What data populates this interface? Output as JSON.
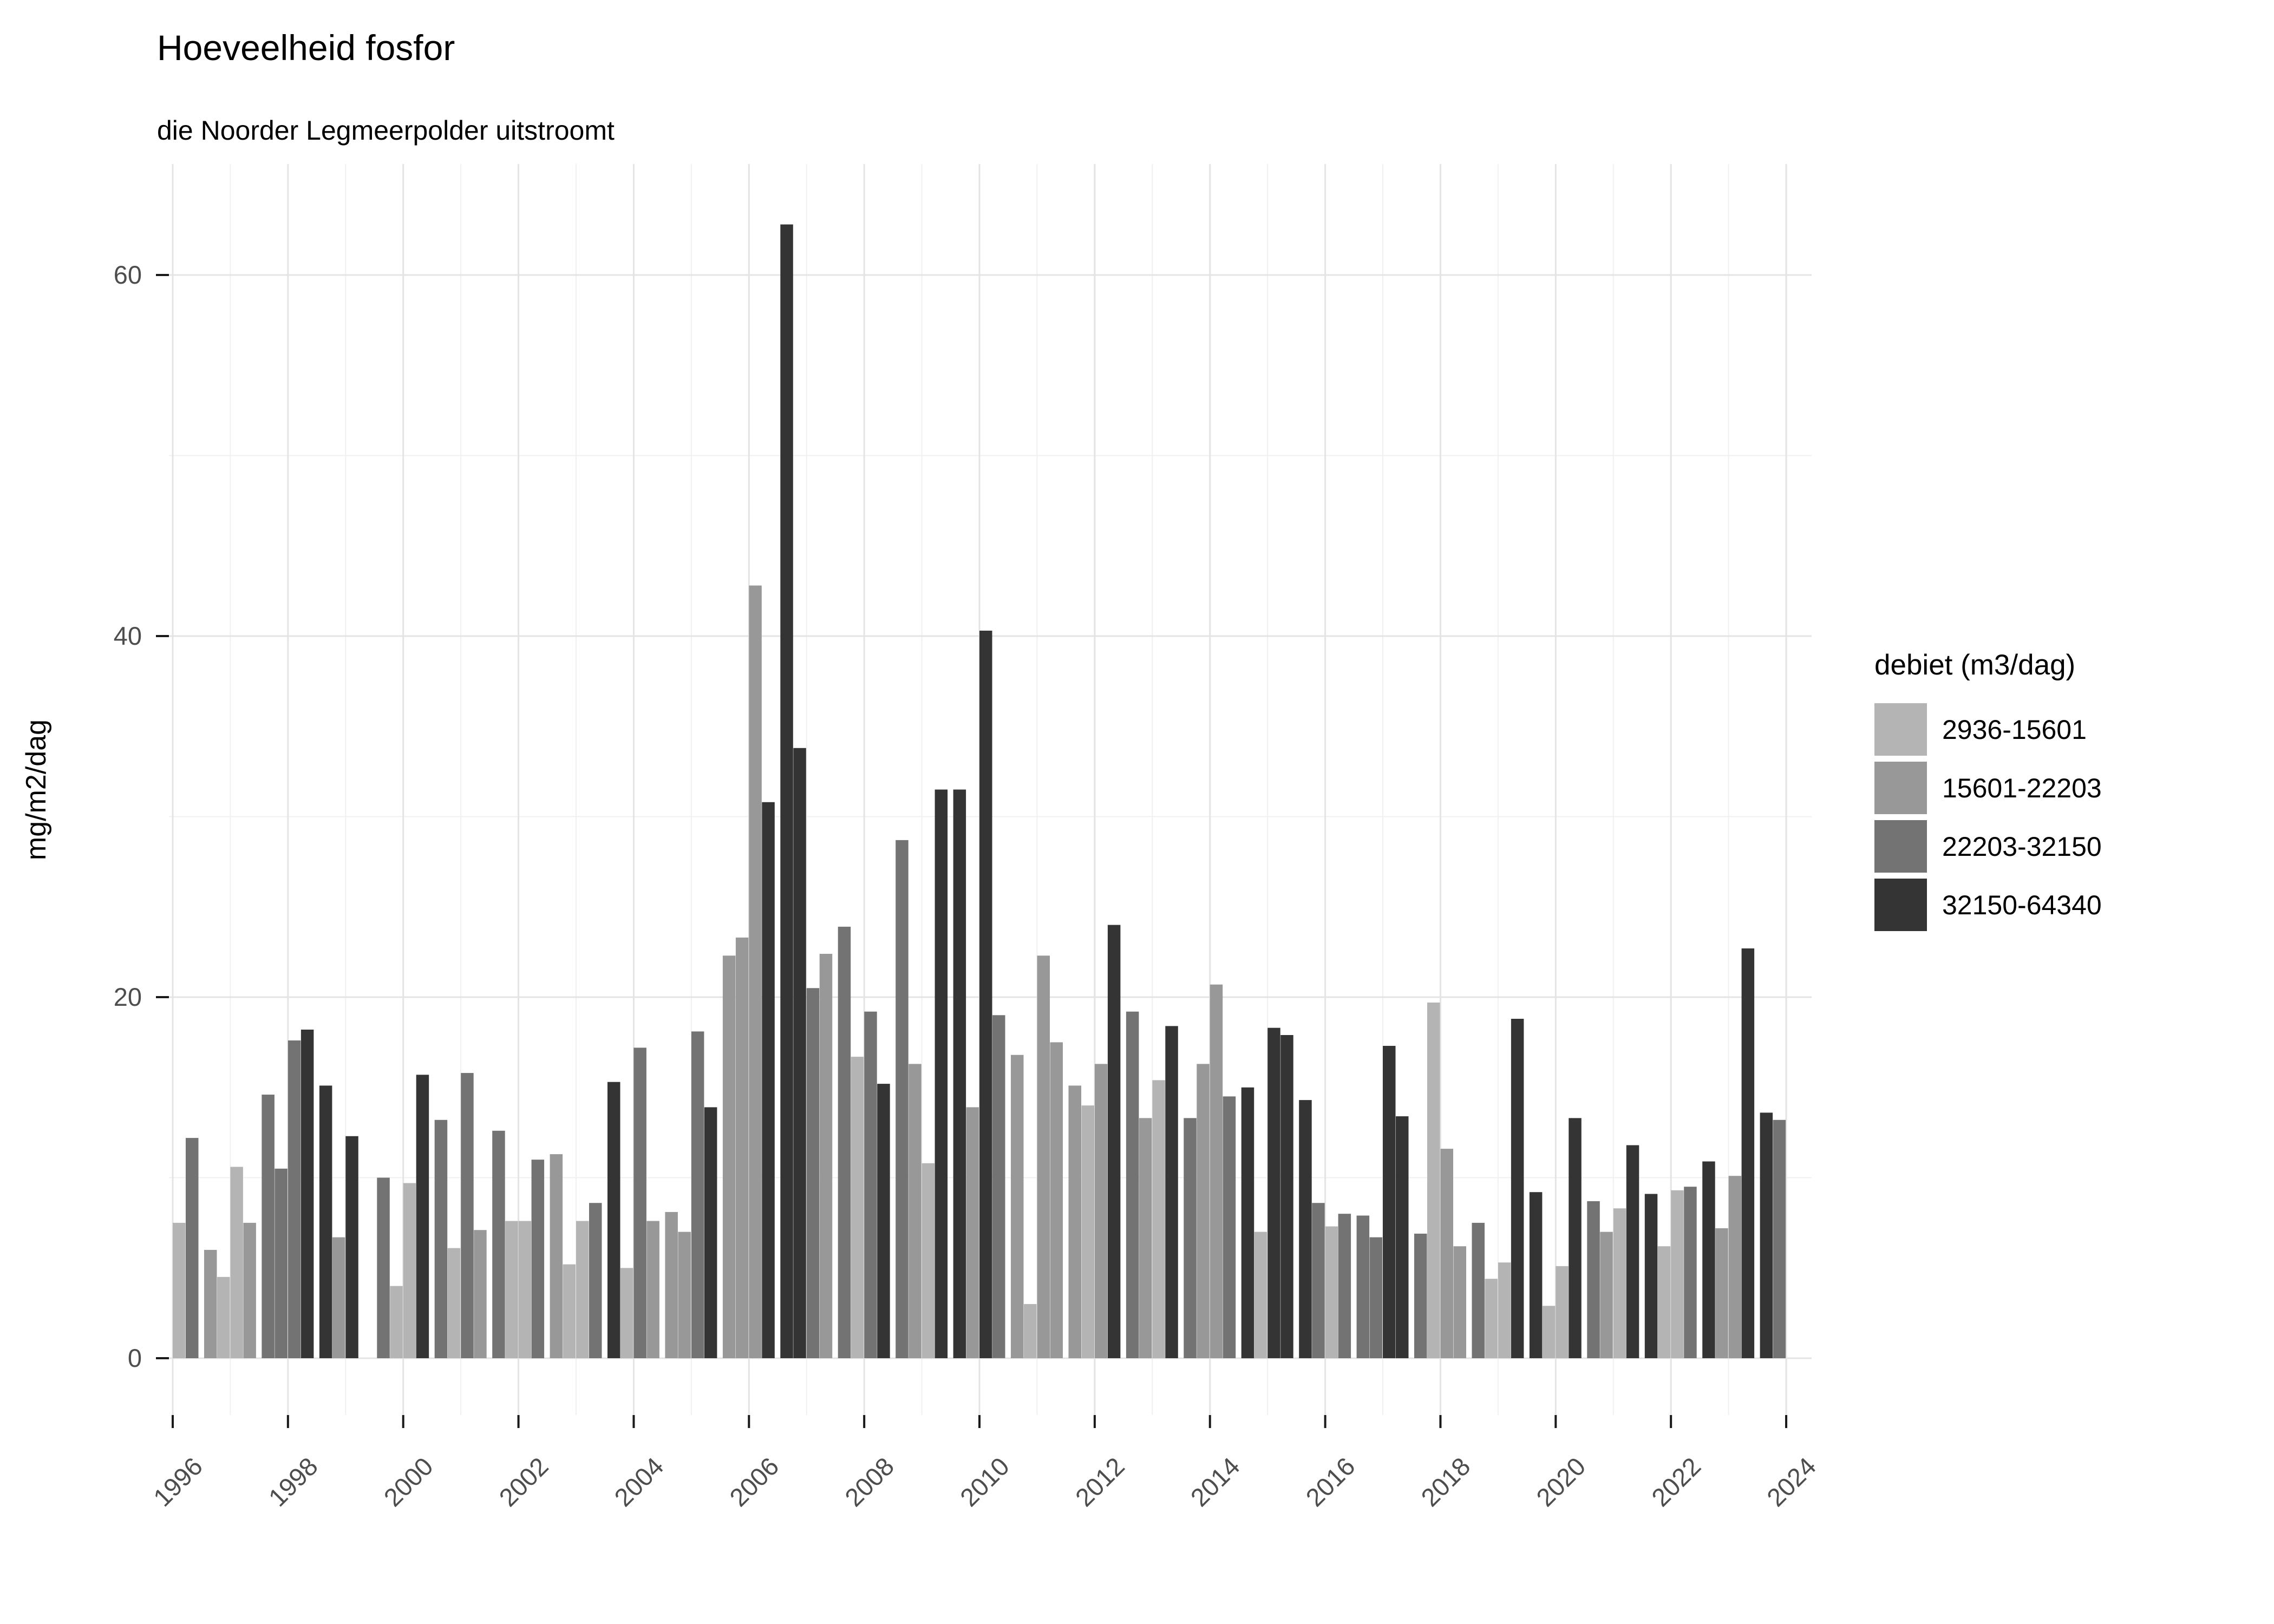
{
  "chart_data": {
    "type": "bar",
    "title": "Hoeveelheid fosfor",
    "subtitle": "die Noorder Legmeerpolder uitstroomt",
    "ylabel": "mg/m2/dag",
    "xlabel": "",
    "ylim": [
      0,
      66
    ],
    "y_major_ticks": [
      0,
      20,
      40,
      60
    ],
    "y_minor_gridlines": [
      10,
      30,
      50
    ],
    "x_tick_years": [
      1996,
      1998,
      2000,
      2002,
      2004,
      2006,
      2008,
      2010,
      2012,
      2014,
      2016,
      2018,
      2020,
      2022,
      2024
    ],
    "x_range": [
      1996,
      2024
    ],
    "grid": true,
    "legend_position": "right",
    "legend_title": "debiet (m3/dag)",
    "legend": [
      {
        "label": "2936-15601",
        "color": "#b4b4b4"
      },
      {
        "label": "15601-22203",
        "color": "#989898"
      },
      {
        "label": "22203-32150",
        "color": "#737373"
      },
      {
        "label": "32150-64340",
        "color": "#343434"
      }
    ],
    "bar_unit": "mg/m2/dag per kwartaal",
    "years": [
      {
        "year": 1996,
        "bars": [
          [
            7.5,
            0
          ],
          [
            12.2,
            2
          ],
          [
            6.0,
            1
          ],
          [
            4.5,
            0
          ]
        ]
      },
      {
        "year": 1997,
        "bars": [
          [
            10.6,
            0
          ],
          [
            7.5,
            1
          ],
          [
            14.6,
            2
          ],
          [
            10.5,
            2
          ]
        ]
      },
      {
        "year": 1998,
        "bars": [
          [
            17.6,
            2
          ],
          [
            18.2,
            3
          ],
          [
            15.1,
            3
          ],
          [
            6.7,
            1
          ]
        ]
      },
      {
        "year": 1999,
        "bars": [
          [
            12.3,
            3
          ],
          [
            0,
            0
          ],
          [
            10.0,
            2
          ],
          [
            4.0,
            0
          ]
        ]
      },
      {
        "year": 2000,
        "bars": [
          [
            9.7,
            0
          ],
          [
            15.7,
            3
          ],
          [
            13.2,
            2
          ],
          [
            6.1,
            0
          ]
        ]
      },
      {
        "year": 2001,
        "bars": [
          [
            15.8,
            2
          ],
          [
            7.1,
            1
          ],
          [
            12.6,
            2
          ],
          [
            7.6,
            0
          ]
        ]
      },
      {
        "year": 2002,
        "bars": [
          [
            7.6,
            0
          ],
          [
            11.0,
            2
          ],
          [
            11.3,
            1
          ],
          [
            5.2,
            0
          ]
        ]
      },
      {
        "year": 2003,
        "bars": [
          [
            7.6,
            0
          ],
          [
            8.6,
            2
          ],
          [
            15.3,
            3
          ],
          [
            5.0,
            0
          ]
        ]
      },
      {
        "year": 2004,
        "bars": [
          [
            17.2,
            2
          ],
          [
            7.6,
            1
          ],
          [
            8.1,
            1
          ],
          [
            7.0,
            1
          ]
        ]
      },
      {
        "year": 2005,
        "bars": [
          [
            18.1,
            2
          ],
          [
            13.9,
            3
          ],
          [
            22.3,
            1
          ],
          [
            23.3,
            1
          ]
        ]
      },
      {
        "year": 2006,
        "bars": [
          [
            42.8,
            1
          ],
          [
            30.8,
            3
          ],
          [
            62.8,
            3
          ],
          [
            33.8,
            3
          ]
        ]
      },
      {
        "year": 2007,
        "bars": [
          [
            20.5,
            2
          ],
          [
            22.4,
            1
          ],
          [
            23.9,
            2
          ],
          [
            16.7,
            0
          ]
        ]
      },
      {
        "year": 2008,
        "bars": [
          [
            19.2,
            2
          ],
          [
            15.2,
            3
          ],
          [
            28.7,
            2
          ],
          [
            16.3,
            1
          ]
        ]
      },
      {
        "year": 2009,
        "bars": [
          [
            10.8,
            0
          ],
          [
            31.5,
            3
          ],
          [
            31.5,
            3
          ],
          [
            13.9,
            1
          ]
        ]
      },
      {
        "year": 2010,
        "bars": [
          [
            40.3,
            3
          ],
          [
            19.0,
            2
          ],
          [
            16.8,
            1
          ],
          [
            3.0,
            0
          ]
        ]
      },
      {
        "year": 2011,
        "bars": [
          [
            22.3,
            1
          ],
          [
            17.5,
            1
          ],
          [
            15.1,
            1
          ],
          [
            14.0,
            0
          ]
        ]
      },
      {
        "year": 2012,
        "bars": [
          [
            16.3,
            1
          ],
          [
            24.0,
            3
          ],
          [
            19.2,
            2
          ],
          [
            13.3,
            1
          ]
        ]
      },
      {
        "year": 2013,
        "bars": [
          [
            15.4,
            0
          ],
          [
            18.4,
            3
          ],
          [
            13.3,
            2
          ],
          [
            16.3,
            1
          ]
        ]
      },
      {
        "year": 2014,
        "bars": [
          [
            20.7,
            1
          ],
          [
            14.5,
            2
          ],
          [
            15.0,
            3
          ],
          [
            7.0,
            0
          ]
        ]
      },
      {
        "year": 2015,
        "bars": [
          [
            18.3,
            3
          ],
          [
            17.9,
            3
          ],
          [
            14.3,
            3
          ],
          [
            8.6,
            2
          ]
        ]
      },
      {
        "year": 2016,
        "bars": [
          [
            7.3,
            0
          ],
          [
            8.0,
            2
          ],
          [
            7.9,
            2
          ],
          [
            6.7,
            2
          ]
        ]
      },
      {
        "year": 2017,
        "bars": [
          [
            17.3,
            3
          ],
          [
            13.4,
            3
          ],
          [
            6.9,
            2
          ],
          [
            19.7,
            0
          ]
        ]
      },
      {
        "year": 2018,
        "bars": [
          [
            11.6,
            1
          ],
          [
            6.2,
            1
          ],
          [
            7.5,
            2
          ],
          [
            4.4,
            0
          ]
        ]
      },
      {
        "year": 2019,
        "bars": [
          [
            5.3,
            0
          ],
          [
            18.8,
            3
          ],
          [
            9.2,
            3
          ],
          [
            2.9,
            0
          ]
        ]
      },
      {
        "year": 2020,
        "bars": [
          [
            5.1,
            0
          ],
          [
            13.3,
            3
          ],
          [
            8.7,
            2
          ],
          [
            7.0,
            1
          ]
        ]
      },
      {
        "year": 2021,
        "bars": [
          [
            8.3,
            0
          ],
          [
            11.8,
            3
          ],
          [
            9.1,
            3
          ],
          [
            6.2,
            0
          ]
        ]
      },
      {
        "year": 2022,
        "bars": [
          [
            9.3,
            0
          ],
          [
            9.5,
            2
          ],
          [
            10.9,
            3
          ],
          [
            7.2,
            1
          ]
        ]
      },
      {
        "year": 2023,
        "bars": [
          [
            10.1,
            1
          ],
          [
            22.7,
            3
          ],
          [
            13.6,
            3
          ],
          [
            13.2,
            2
          ]
        ]
      }
    ],
    "style": {
      "bar_colors": [
        "#b4b4b4",
        "#989898",
        "#737373",
        "#343434"
      ],
      "grid_major_color": "#e4e4e4",
      "grid_minor_color": "#f0f0f0",
      "tick_mark_color": "#1a1a1a",
      "tick_label_color": "#4d4d4d",
      "axis_title_color": "#000000"
    }
  }
}
